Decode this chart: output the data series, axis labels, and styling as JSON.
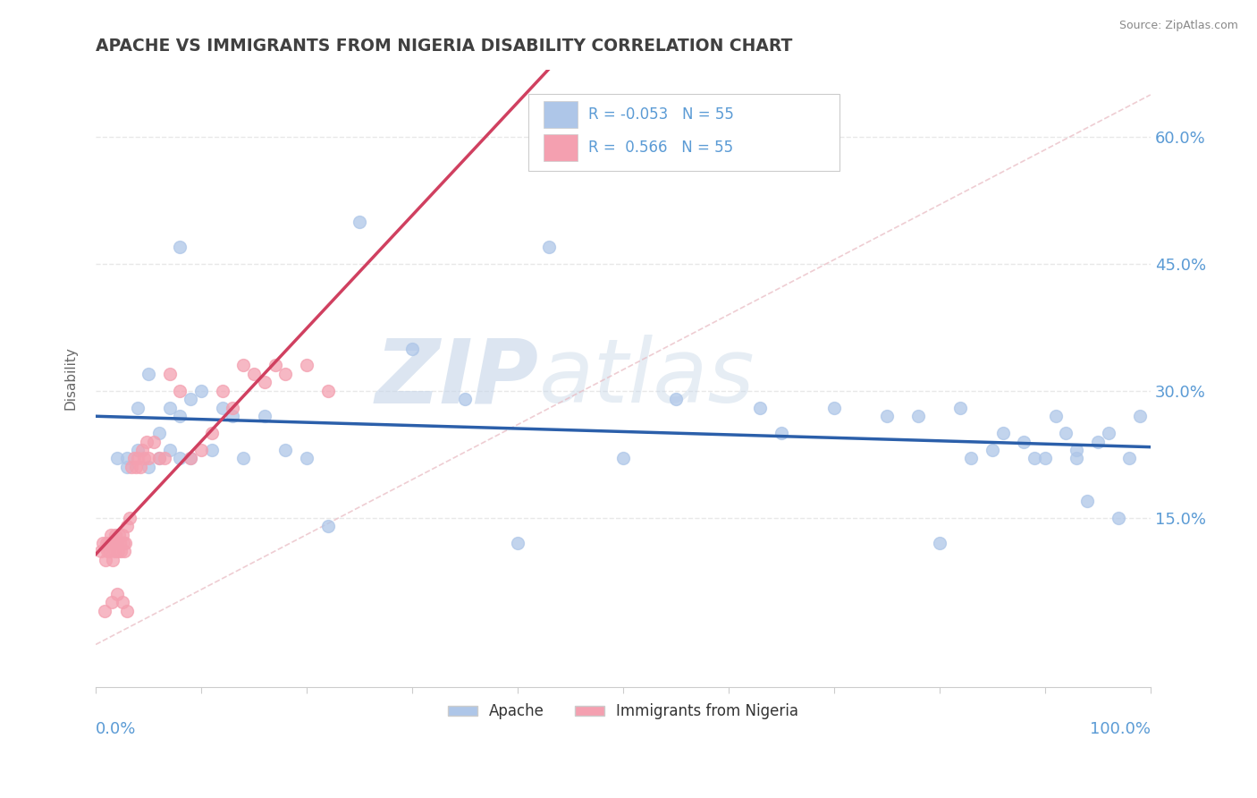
{
  "title": "APACHE VS IMMIGRANTS FROM NIGERIA DISABILITY CORRELATION CHART",
  "source": "Source: ZipAtlas.com",
  "ylabel": "Disability",
  "right_yticks": [
    0.15,
    0.3,
    0.45,
    0.6
  ],
  "right_yticklabels": [
    "15.0%",
    "30.0%",
    "45.0%",
    "60.0%"
  ],
  "xlim": [
    0.0,
    1.0
  ],
  "ylim": [
    -0.05,
    0.68
  ],
  "legend_label1": "Apache",
  "legend_label2": "Immigrants from Nigeria",
  "apache_color": "#aec6e8",
  "nigeria_color": "#f4a0b0",
  "apache_line_color": "#2b5faa",
  "nigeria_line_color": "#d04060",
  "diag_line_color": "#e8b8c0",
  "watermark_color": "#d0dce8",
  "grid_color": "#e8e8e8",
  "background_color": "#ffffff",
  "title_color": "#404040",
  "axis_label_color": "#5b9bd5",
  "apache_r": -0.053,
  "nigeria_r": 0.566,
  "apache_n": 55,
  "nigeria_n": 55,
  "apache_data_x": [
    0.08,
    0.25,
    0.43,
    0.63,
    0.75,
    0.78,
    0.82,
    0.85,
    0.88,
    0.9,
    0.92,
    0.93,
    0.94,
    0.95,
    0.97,
    0.99,
    0.03,
    0.04,
    0.05,
    0.06,
    0.07,
    0.08,
    0.09,
    0.1,
    0.11,
    0.12,
    0.13,
    0.14,
    0.16,
    0.18,
    0.2,
    0.22,
    0.3,
    0.35,
    0.4,
    0.5,
    0.55,
    0.65,
    0.7,
    0.8,
    0.83,
    0.86,
    0.89,
    0.91,
    0.93,
    0.96,
    0.98,
    0.02,
    0.03,
    0.04,
    0.05,
    0.06,
    0.07,
    0.08,
    0.09
  ],
  "apache_data_y": [
    0.47,
    0.5,
    0.47,
    0.28,
    0.27,
    0.27,
    0.28,
    0.23,
    0.24,
    0.22,
    0.25,
    0.22,
    0.17,
    0.24,
    0.15,
    0.27,
    0.22,
    0.28,
    0.32,
    0.25,
    0.28,
    0.27,
    0.29,
    0.3,
    0.23,
    0.28,
    0.27,
    0.22,
    0.27,
    0.23,
    0.22,
    0.14,
    0.35,
    0.29,
    0.12,
    0.22,
    0.29,
    0.25,
    0.28,
    0.12,
    0.22,
    0.25,
    0.22,
    0.27,
    0.23,
    0.25,
    0.22,
    0.22,
    0.21,
    0.23,
    0.21,
    0.22,
    0.23,
    0.22,
    0.22
  ],
  "nigeria_data_x": [
    0.005,
    0.007,
    0.009,
    0.01,
    0.011,
    0.012,
    0.013,
    0.014,
    0.015,
    0.016,
    0.017,
    0.018,
    0.019,
    0.02,
    0.021,
    0.022,
    0.023,
    0.024,
    0.025,
    0.026,
    0.027,
    0.028,
    0.03,
    0.032,
    0.034,
    0.036,
    0.038,
    0.04,
    0.042,
    0.044,
    0.046,
    0.048,
    0.05,
    0.055,
    0.06,
    0.065,
    0.07,
    0.08,
    0.09,
    0.1,
    0.11,
    0.12,
    0.13,
    0.14,
    0.15,
    0.16,
    0.17,
    0.18,
    0.2,
    0.22,
    0.008,
    0.015,
    0.02,
    0.025,
    0.03
  ],
  "nigeria_data_y": [
    0.11,
    0.12,
    0.1,
    0.12,
    0.11,
    0.12,
    0.11,
    0.13,
    0.12,
    0.1,
    0.12,
    0.11,
    0.13,
    0.12,
    0.11,
    0.13,
    0.12,
    0.11,
    0.13,
    0.12,
    0.11,
    0.12,
    0.14,
    0.15,
    0.21,
    0.22,
    0.21,
    0.22,
    0.21,
    0.23,
    0.22,
    0.24,
    0.22,
    0.24,
    0.22,
    0.22,
    0.32,
    0.3,
    0.22,
    0.23,
    0.25,
    0.3,
    0.28,
    0.33,
    0.32,
    0.31,
    0.33,
    0.32,
    0.33,
    0.3,
    0.04,
    0.05,
    0.06,
    0.05,
    0.04
  ]
}
